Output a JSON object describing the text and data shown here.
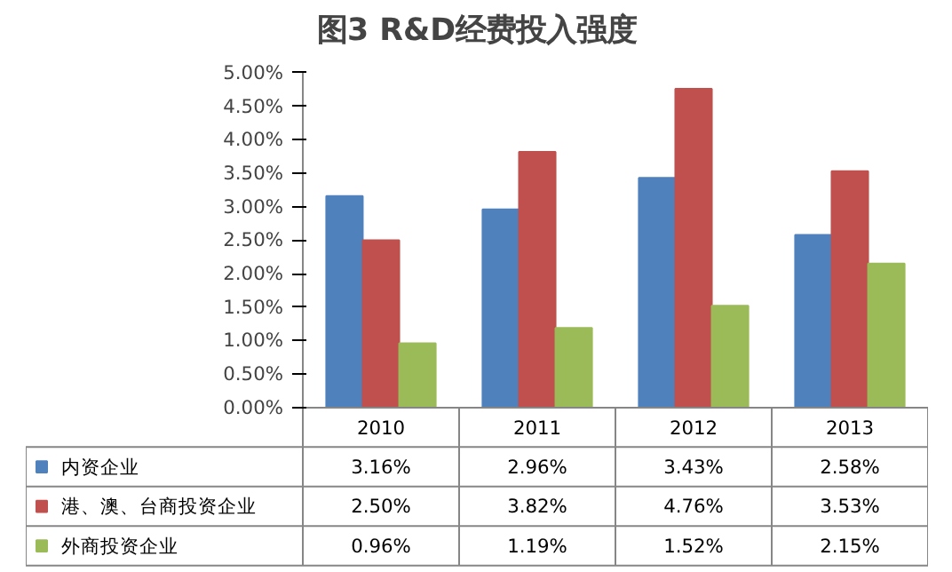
{
  "chart_data": {
    "type": "bar",
    "title": "图3 R&D经费投入强度",
    "categories": [
      "2010",
      "2011",
      "2012",
      "2013"
    ],
    "series": [
      {
        "name": "内资企业",
        "color": "#4f81bd",
        "values": [
          3.16,
          2.96,
          3.43,
          2.58
        ],
        "value_labels": [
          "3.16%",
          "2.96%",
          "3.43%",
          "2.58%"
        ]
      },
      {
        "name": "港、澳、台商投资企业",
        "color": "#c0504d",
        "values": [
          2.5,
          3.82,
          4.76,
          3.53
        ],
        "value_labels": [
          "2.50%",
          "3.82%",
          "4.76%",
          "3.53%"
        ]
      },
      {
        "name": "外商投资企业",
        "color": "#9bbb59",
        "values": [
          0.96,
          1.19,
          1.52,
          2.15
        ],
        "value_labels": [
          "0.96%",
          "1.19%",
          "1.52%",
          "2.15%"
        ]
      }
    ],
    "ylim": [
      0,
      5
    ],
    "yticks": [
      {
        "value": 0,
        "label": "0.00%"
      },
      {
        "value": 0.5,
        "label": "0.50%"
      },
      {
        "value": 1,
        "label": "1.00%"
      },
      {
        "value": 1.5,
        "label": "1.50%"
      },
      {
        "value": 2,
        "label": "2.00%"
      },
      {
        "value": 2.5,
        "label": "2.50%"
      },
      {
        "value": 3,
        "label": "3.00%"
      },
      {
        "value": 3.5,
        "label": "3.50%"
      },
      {
        "value": 4,
        "label": "4.00%"
      },
      {
        "value": 4.5,
        "label": "4.50%"
      },
      {
        "value": 5,
        "label": "5.00%"
      }
    ],
    "grid": false,
    "legend": "bottom"
  }
}
